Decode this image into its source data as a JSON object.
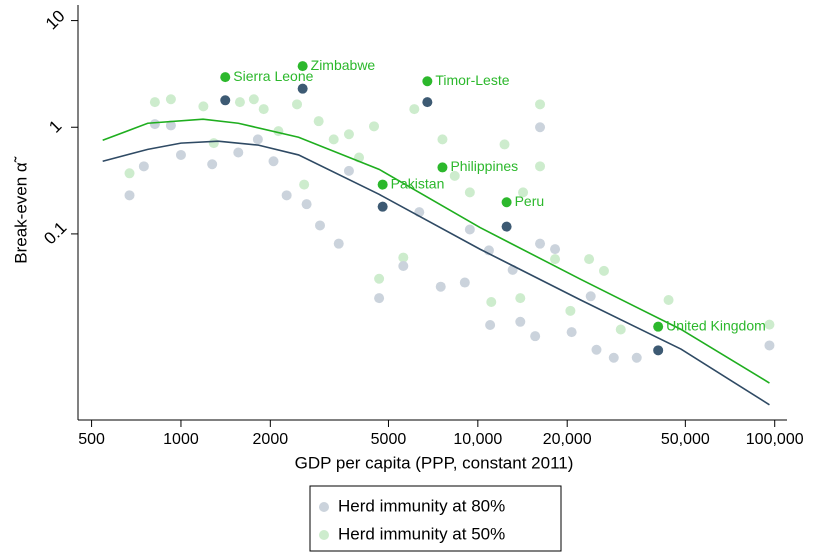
{
  "chart_data": {
    "type": "scatter",
    "x_label": "GDP per capita (PPP, constant 2011)",
    "y_label": "Break-even α̃",
    "xlog": true,
    "ylog": true,
    "xlim": [
      450,
      110000
    ],
    "ylim": [
      0.0018,
      14
    ],
    "xticks": [
      500,
      1000,
      2000,
      5000,
      {
        "value": 10000,
        "label": "10,000"
      },
      {
        "value": 20000,
        "label": "20,000"
      },
      {
        "value": 50000,
        "label": "50,000"
      },
      {
        "value": 100000,
        "label": "100,000"
      }
    ],
    "yticks": [
      0.1,
      1,
      10
    ],
    "legend": "bottom",
    "series": [
      {
        "name": "Herd immunity at 80%",
        "color": "#cbd3dc",
        "curve_color": "#2f4a64",
        "x": [
          671,
          750,
          817,
          925,
          1000,
          1274,
          1560,
          1816,
          2050,
          2270,
          2650,
          2940,
          3400,
          3680,
          4650,
          5610,
          6350,
          7500,
          9040,
          10900,
          11000,
          13100,
          13900,
          16200,
          16200,
          15600,
          18200,
          20700,
          25100,
          28700,
          34300,
          96000,
          24000,
          9400
        ],
        "values": [
          0.23,
          0.43,
          1.07,
          1.04,
          0.55,
          0.45,
          0.58,
          0.77,
          0.48,
          0.23,
          0.19,
          0.12,
          0.081,
          0.39,
          0.025,
          0.05,
          0.16,
          0.032,
          0.035,
          0.07,
          0.014,
          0.046,
          0.015,
          1.0,
          0.081,
          0.011,
          0.072,
          0.012,
          0.0082,
          0.0069,
          0.0069,
          0.009,
          0.026,
          0.11
        ],
        "curve_x": [
          545,
          773,
          1000,
          1335,
          1823,
          2490,
          4650,
          10160,
          22200,
          48400,
          96000
        ],
        "curve_y": [
          0.48,
          0.62,
          0.71,
          0.74,
          0.68,
          0.55,
          0.235,
          0.072,
          0.024,
          0.0083,
          0.0025
        ]
      },
      {
        "name": "Herd immunity at 50%",
        "color": "#cdeccd",
        "curve_color": "#1fae1f",
        "x": [
          671,
          817,
          925,
          1190,
          1290,
          1580,
          1760,
          1900,
          2130,
          2460,
          2600,
          2910,
          3270,
          3680,
          3980,
          4470,
          4650,
          5610,
          6110,
          7600,
          8360,
          9400,
          11100,
          12300,
          14200,
          16200,
          16200,
          18200,
          20500,
          23700,
          26600,
          30300,
          43900,
          96000,
          13900
        ],
        "values": [
          0.37,
          1.72,
          1.83,
          1.57,
          0.71,
          1.72,
          1.83,
          1.48,
          0.92,
          1.64,
          0.29,
          1.14,
          0.77,
          0.86,
          0.52,
          1.02,
          0.038,
          0.06,
          1.48,
          0.77,
          0.35,
          0.245,
          0.023,
          0.69,
          0.245,
          1.64,
          0.43,
          0.058,
          0.019,
          0.058,
          0.045,
          0.0127,
          0.024,
          0.0141,
          0.025
        ],
        "curve_x": [
          545,
          773,
          1187,
          1560,
          2490,
          4650,
          10160,
          22200,
          48400,
          96000
        ],
        "curve_y": [
          0.755,
          1.09,
          1.19,
          1.09,
          0.806,
          0.403,
          0.115,
          0.0375,
          0.0127,
          0.004
        ]
      }
    ],
    "highlight_colors": [
      "#3d5a73",
      "#2cb82c"
    ],
    "highlights": [
      {
        "label": "Sierra Leone",
        "x": 1410,
        "y": [
          1.79,
          2.95
        ]
      },
      {
        "label": "Zimbabwe",
        "x": 2570,
        "y": [
          2.3,
          3.74
        ]
      },
      {
        "label": "Timor-Leste",
        "x": 6760,
        "y": [
          1.72,
          2.7
        ]
      },
      {
        "label": "Philippines",
        "x": 7600,
        "y": [
          null,
          0.42
        ]
      },
      {
        "label": "Pakistan",
        "x": 4780,
        "y": [
          0.18,
          0.29
        ]
      },
      {
        "label": "Peru",
        "x": 12500,
        "y": [
          0.117,
          0.198
        ]
      },
      {
        "label": "United Kingdom",
        "x": 40500,
        "y": [
          0.0081,
          0.0135
        ]
      }
    ]
  }
}
